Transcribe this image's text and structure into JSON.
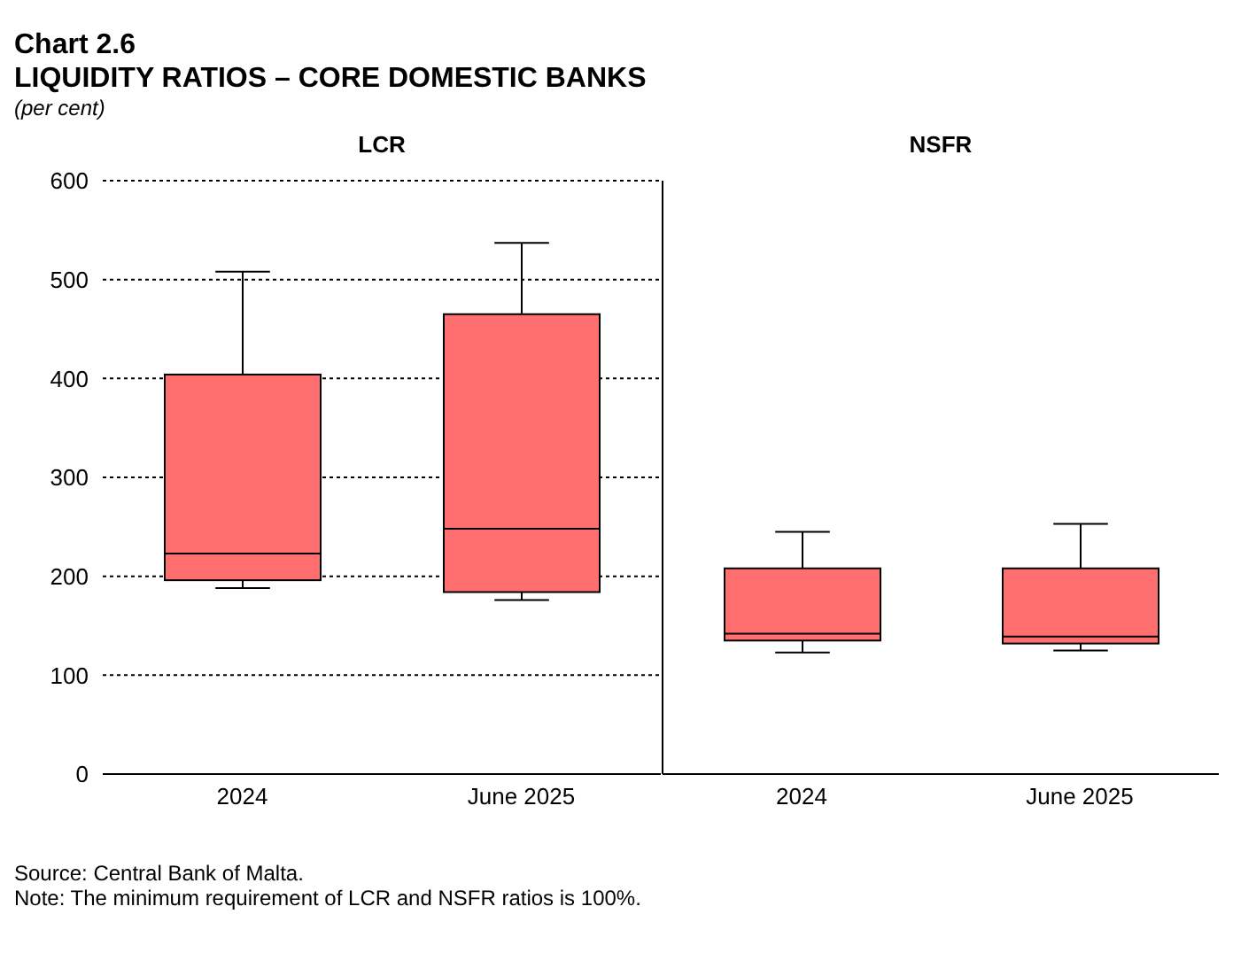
{
  "chart_data": [
    {
      "type": "box",
      "title": "Chart 2.6",
      "subtitle": "LIQUIDITY RATIOS – CORE DOMESTIC BANKS",
      "ylabel": "(per cent)",
      "annotations": [
        "LCR"
      ],
      "categories": [
        "2024",
        "June 2025"
      ],
      "color": "#ff6f6f",
      "boxes": [
        {
          "low": 188,
          "q1": 196,
          "median": 223,
          "q3": 404,
          "high": 508
        },
        {
          "low": 176,
          "q1": 184,
          "median": 248,
          "q3": 465,
          "high": 537
        }
      ],
      "ylim": [
        0,
        600
      ],
      "yticks": [
        0,
        100,
        200,
        300,
        400,
        500,
        600
      ],
      "grid": "y"
    },
    {
      "type": "box",
      "annotations": [
        "NSFR",
        "Source: Central Bank of Malta.",
        "Note: The minimum requirement of LCR and NSFR ratios is 100%."
      ],
      "categories": [
        "2024",
        "June 2025"
      ],
      "color": "#ff6f6f",
      "boxes": [
        {
          "low": 123,
          "q1": 135,
          "median": 142,
          "q3": 208,
          "high": 245
        },
        {
          "low": 125,
          "q1": 132,
          "median": 139,
          "q3": 208,
          "high": 253
        }
      ],
      "ylim": [
        0,
        600
      ],
      "yticks": [
        0,
        100,
        200,
        300,
        400,
        500,
        600
      ],
      "grid": "y",
      "tick_labels": "x"
    }
  ]
}
